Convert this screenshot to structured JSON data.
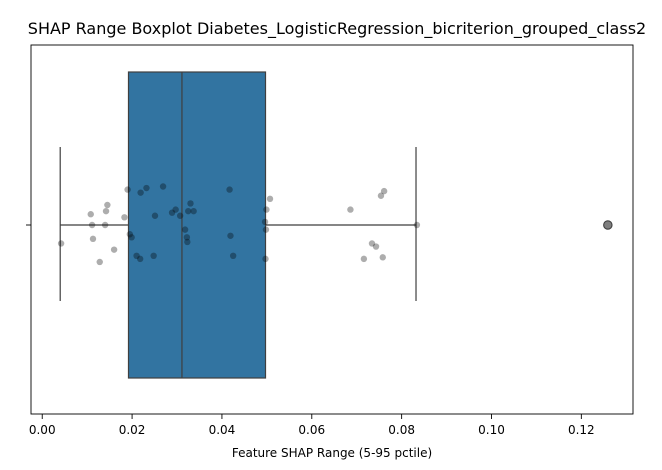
{
  "chart_data": {
    "type": "box",
    "title": "SHAP Range Boxplot Diabetes_LogisticRegression_bicriterion_grouped_class2",
    "xlabel": "Feature SHAP Range (5-95 pctile)",
    "ylabel": "",
    "xlim": [
      -0.0025,
      0.1315
    ],
    "xticks": [
      0.0,
      0.02,
      0.04,
      0.06,
      0.08,
      0.1,
      0.12
    ],
    "xtick_labels": [
      "0.00",
      "0.02",
      "0.04",
      "0.06",
      "0.08",
      "0.10",
      "0.12"
    ],
    "box": {
      "whisker_low": 0.004,
      "q1": 0.0192,
      "median": 0.0311,
      "q3": 0.0497,
      "whisker_high": 0.0832,
      "outliers": [
        0.1259
      ],
      "color": "#3274a1"
    },
    "points": [
      {
        "x": 0.0042,
        "j": 0.12
      },
      {
        "x": 0.0108,
        "j": -0.07
      },
      {
        "x": 0.0111,
        "j": 0.0
      },
      {
        "x": 0.0113,
        "j": 0.09
      },
      {
        "x": 0.0128,
        "j": 0.24
      },
      {
        "x": 0.014,
        "j": 0.0
      },
      {
        "x": 0.0142,
        "j": -0.09
      },
      {
        "x": 0.0145,
        "j": -0.13
      },
      {
        "x": 0.016,
        "j": 0.16
      },
      {
        "x": 0.0183,
        "j": -0.05
      },
      {
        "x": 0.019,
        "j": -0.23
      },
      {
        "x": 0.0195,
        "j": 0.06
      },
      {
        "x": 0.0199,
        "j": 0.08
      },
      {
        "x": 0.021,
        "j": 0.2
      },
      {
        "x": 0.0218,
        "j": 0.22
      },
      {
        "x": 0.0219,
        "j": -0.21
      },
      {
        "x": 0.0232,
        "j": -0.24
      },
      {
        "x": 0.0248,
        "j": 0.2
      },
      {
        "x": 0.0251,
        "j": -0.06
      },
      {
        "x": 0.0269,
        "j": -0.25
      },
      {
        "x": 0.0289,
        "j": -0.08
      },
      {
        "x": 0.0297,
        "j": -0.1
      },
      {
        "x": 0.0307,
        "j": -0.06
      },
      {
        "x": 0.0318,
        "j": 0.03
      },
      {
        "x": 0.0322,
        "j": 0.08
      },
      {
        "x": 0.0323,
        "j": 0.11
      },
      {
        "x": 0.0325,
        "j": -0.09
      },
      {
        "x": 0.033,
        "j": -0.14
      },
      {
        "x": 0.0337,
        "j": -0.09
      },
      {
        "x": 0.0417,
        "j": -0.23
      },
      {
        "x": 0.0419,
        "j": 0.07
      },
      {
        "x": 0.0425,
        "j": 0.2
      },
      {
        "x": 0.0496,
        "j": -0.02
      },
      {
        "x": 0.0497,
        "j": 0.22
      },
      {
        "x": 0.0498,
        "j": 0.03
      },
      {
        "x": 0.0499,
        "j": -0.1
      },
      {
        "x": 0.0507,
        "j": -0.17
      },
      {
        "x": 0.0686,
        "j": -0.1
      },
      {
        "x": 0.0716,
        "j": 0.22
      },
      {
        "x": 0.0734,
        "j": 0.12
      },
      {
        "x": 0.0743,
        "j": 0.14
      },
      {
        "x": 0.0754,
        "j": -0.19
      },
      {
        "x": 0.0758,
        "j": 0.21
      },
      {
        "x": 0.0761,
        "j": -0.22
      },
      {
        "x": 0.0834,
        "j": 0.0
      }
    ],
    "grid": false,
    "legend": "none"
  }
}
